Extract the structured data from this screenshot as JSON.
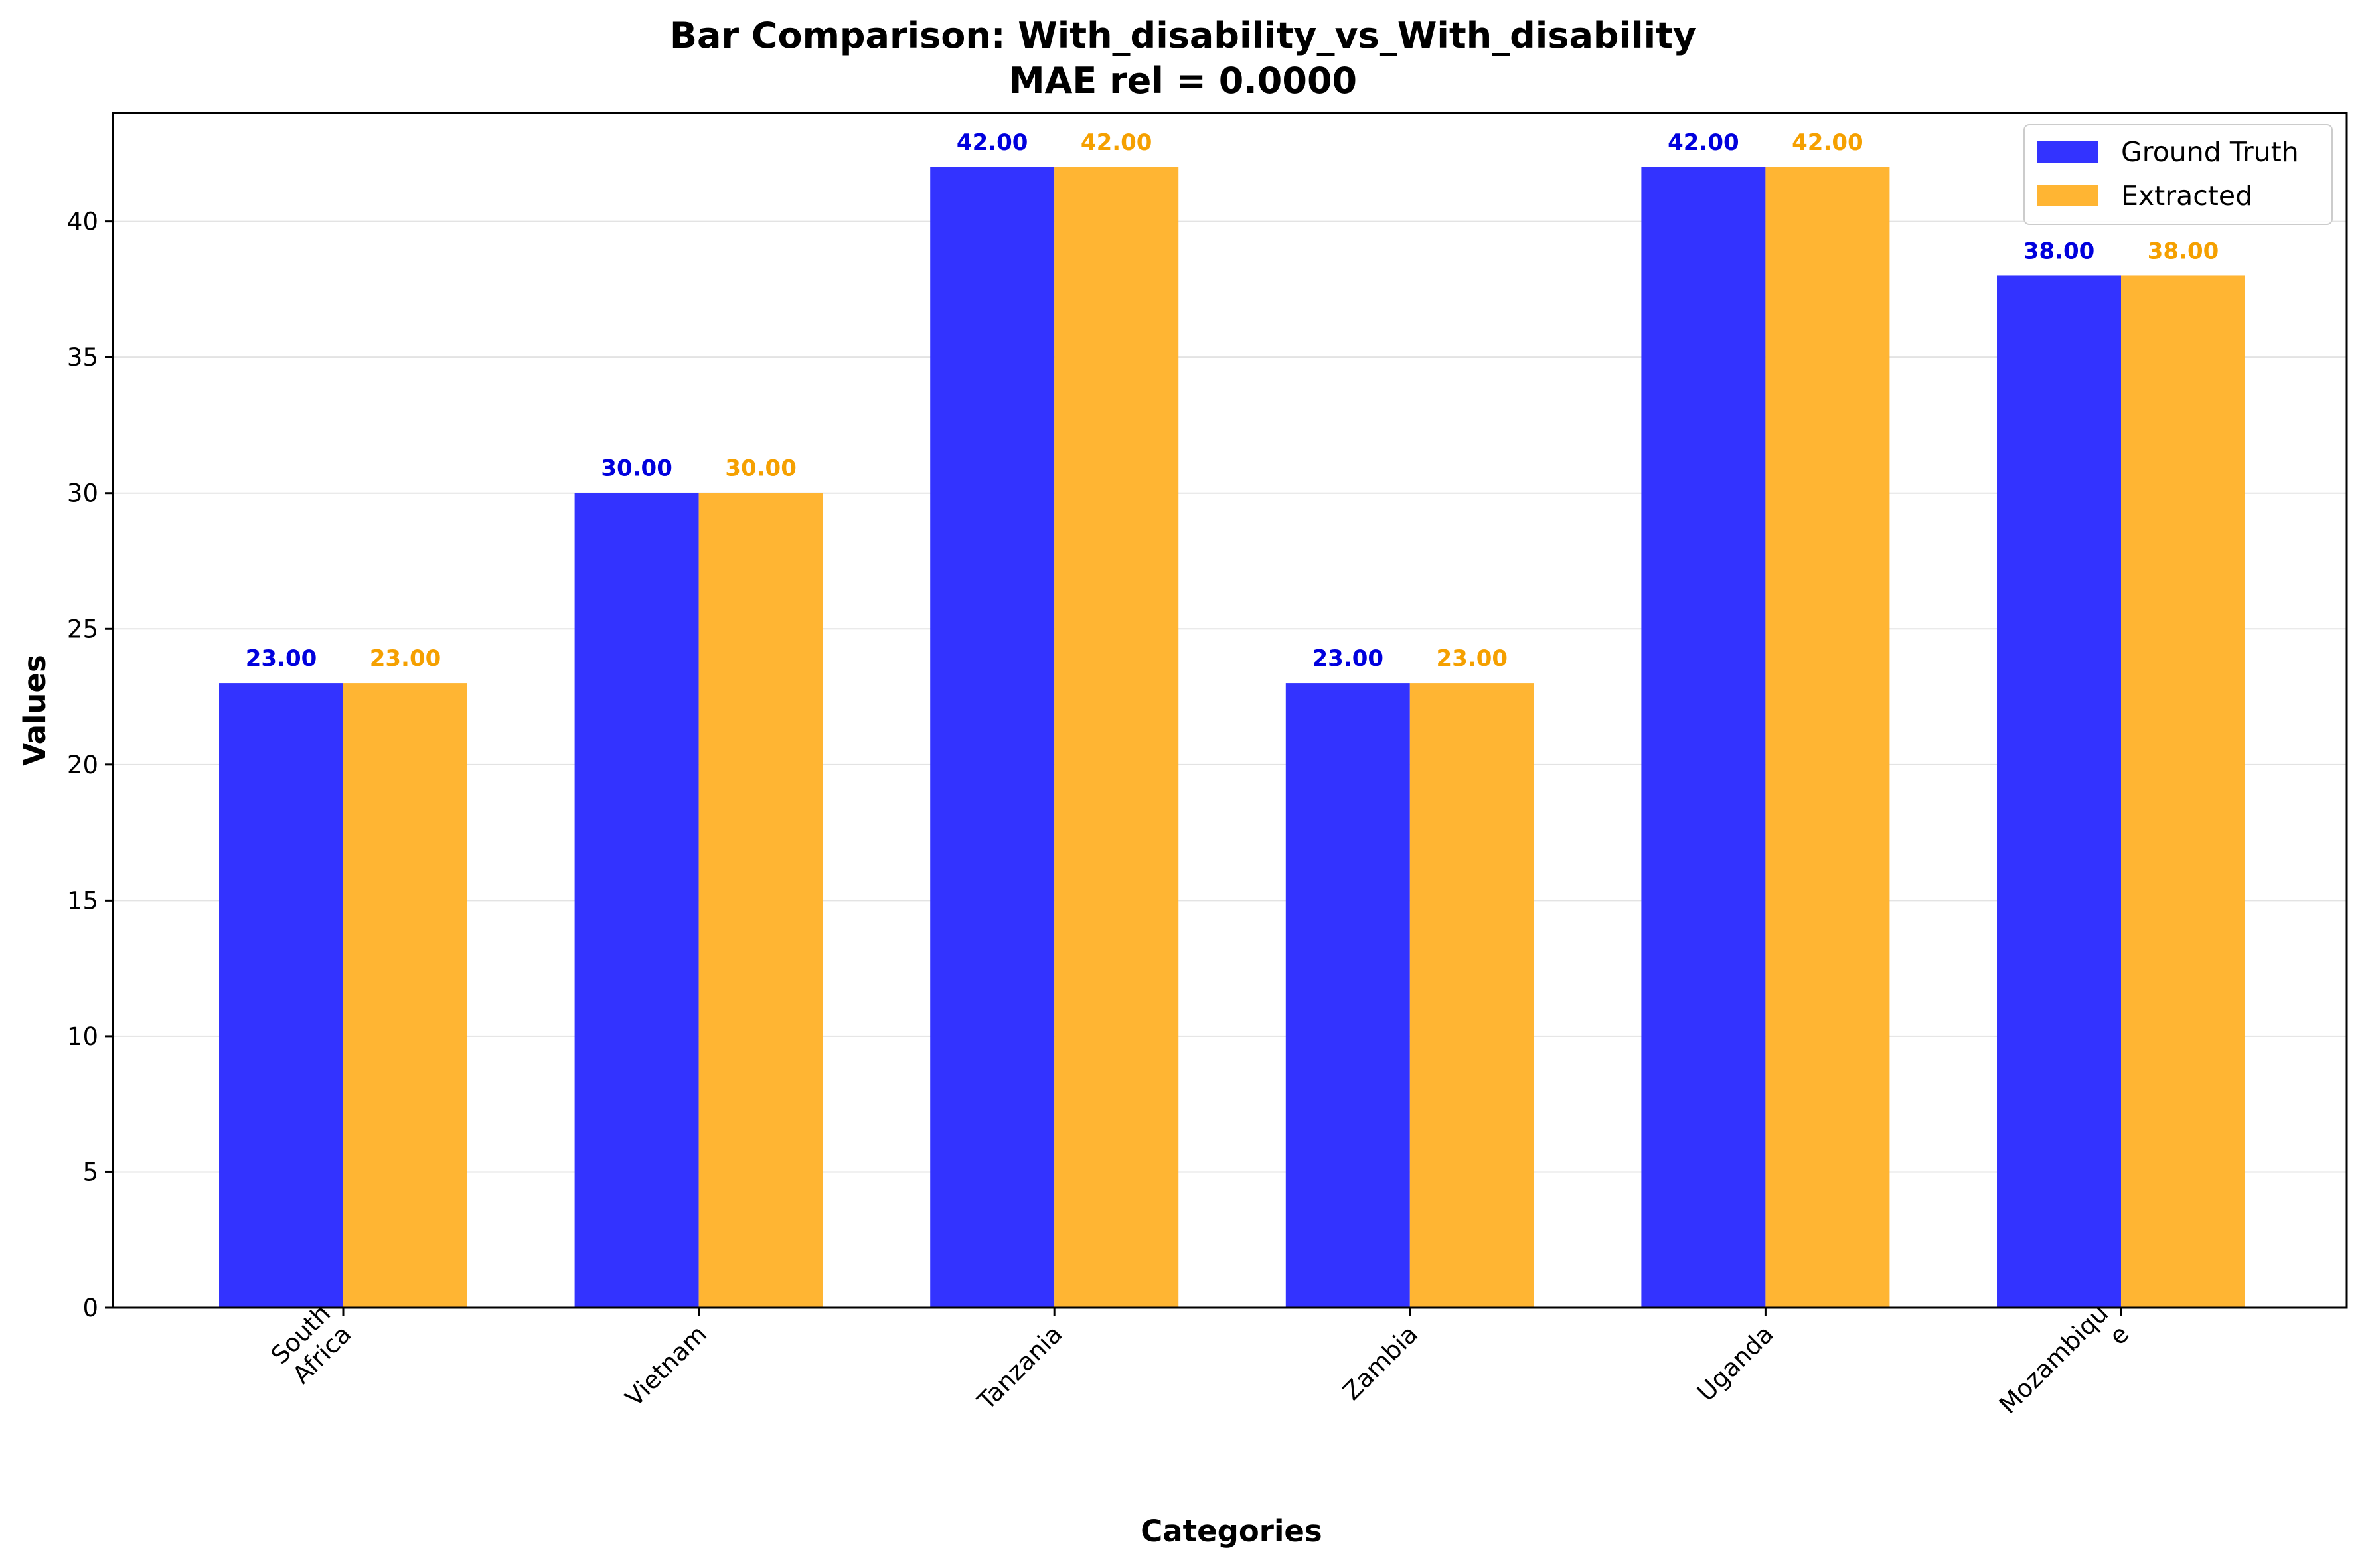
{
  "chart_data": {
    "type": "bar",
    "title": "Bar Comparison: With_disability_vs_With_disability",
    "subtitle": "MAE rel = 0.0000",
    "xlabel": "Categories",
    "ylabel": "Values",
    "categories": [
      [
        "South",
        "Africa"
      ],
      [
        "Vietnam"
      ],
      [
        "Tanzania"
      ],
      [
        "Zambia"
      ],
      [
        "Uganda"
      ],
      [
        "Mozambiqu",
        "e"
      ]
    ],
    "series": [
      {
        "name": "Ground Truth",
        "color": "#3333ff",
        "label_color": "#0000dd",
        "values": [
          23,
          30,
          42,
          23,
          42,
          38
        ],
        "labels": [
          "23.00",
          "30.00",
          "42.00",
          "23.00",
          "42.00",
          "38.00"
        ]
      },
      {
        "name": "Extracted",
        "color": "#ffb533",
        "label_color": "#f5a000",
        "values": [
          23,
          30,
          42,
          23,
          42,
          38
        ],
        "labels": [
          "23.00",
          "30.00",
          "42.00",
          "23.00",
          "42.00",
          "38.00"
        ]
      }
    ],
    "ylim": [
      0,
      44
    ],
    "yticks": [
      0,
      5,
      10,
      15,
      20,
      25,
      30,
      35,
      40
    ],
    "grid": "y",
    "legend_position": "top-right"
  }
}
